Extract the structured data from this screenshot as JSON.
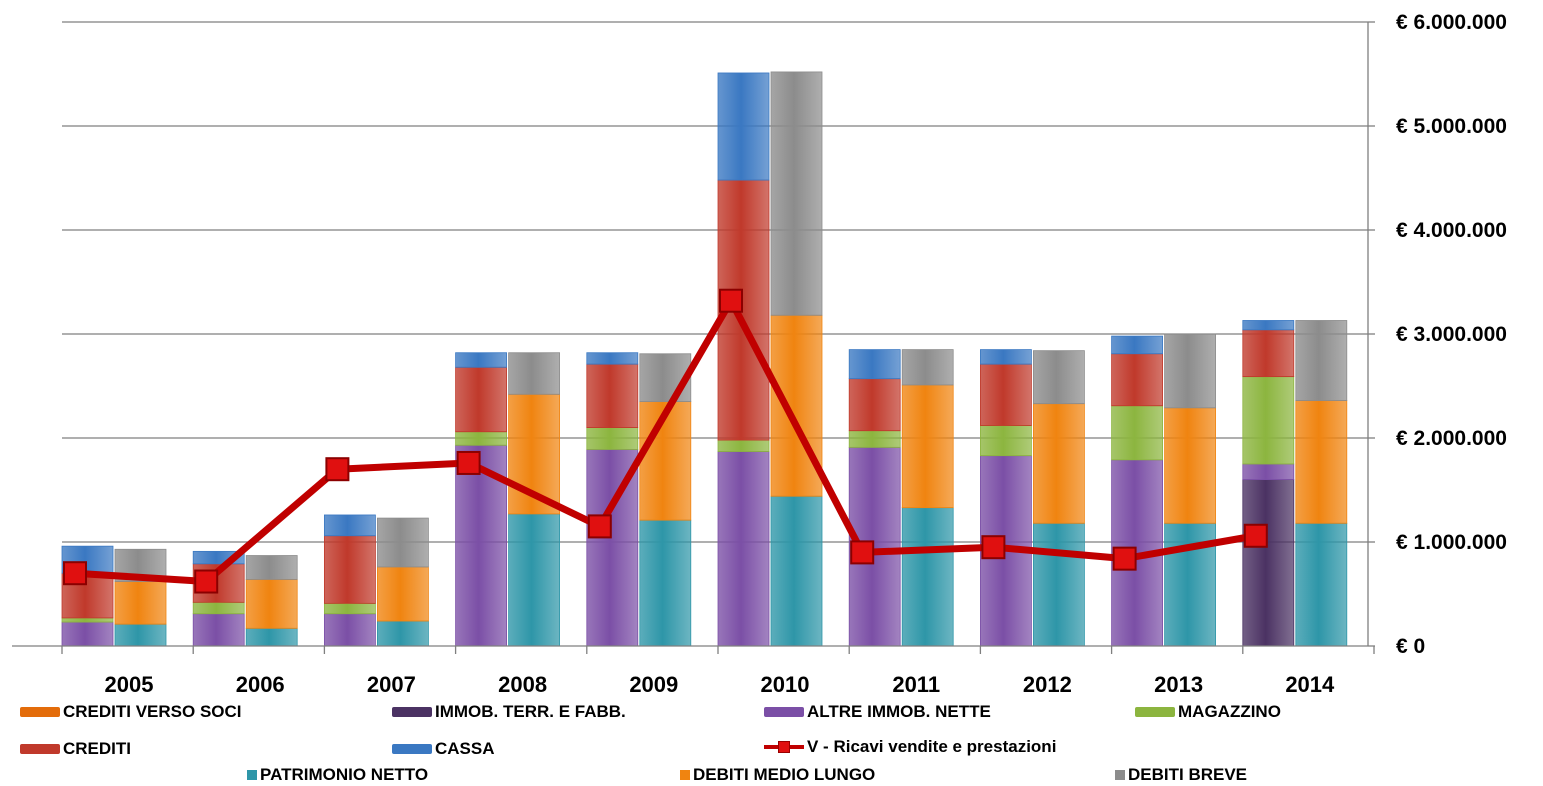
{
  "chart_data": {
    "type": "bar",
    "categories": [
      "2005",
      "2006",
      "2007",
      "2008",
      "2009",
      "2010",
      "2011",
      "2012",
      "2013",
      "2014"
    ],
    "ylim": [
      0,
      6000000
    ],
    "yticks": [
      "€ 0",
      "€ 1.000.000",
      "€ 2.000.000",
      "€ 3.000.000",
      "€ 4.000.000",
      "€ 5.000.000",
      "€ 6.000.000"
    ],
    "grid": true,
    "legend_position": "bottom",
    "y_axis_side": "right",
    "stacks": [
      {
        "name": "assets",
        "series": [
          {
            "name": "CREDITI VERSO SOCI",
            "color": "#e36c0a",
            "values": [
              0,
              0,
              0,
              0,
              0,
              0,
              0,
              0,
              0,
              0
            ]
          },
          {
            "name": "IMMOB. TERR. E FABB.",
            "color": "#4b3263",
            "values": [
              0,
              0,
              0,
              0,
              0,
              0,
              0,
              0,
              0,
              1600000
            ]
          },
          {
            "name": "ALTRE IMMOB. NETTE",
            "color": "#7b4fa6",
            "values": [
              230000,
              310000,
              310000,
              1930000,
              1890000,
              1870000,
              1910000,
              1830000,
              1790000,
              150000
            ]
          },
          {
            "name": "MAGAZZINO",
            "color": "#8cb53f",
            "values": [
              40000,
              110000,
              100000,
              130000,
              210000,
              110000,
              160000,
              290000,
              520000,
              840000
            ]
          },
          {
            "name": "CREDITI",
            "color": "#c0392b",
            "values": [
              430000,
              370000,
              650000,
              620000,
              610000,
              2500000,
              500000,
              590000,
              500000,
              450000
            ]
          },
          {
            "name": "CASSA",
            "color": "#3a78c2",
            "values": [
              260000,
              120000,
              200000,
              140000,
              110000,
              1030000,
              280000,
              140000,
              170000,
              90000
            ]
          }
        ]
      },
      {
        "name": "liabilities",
        "series": [
          {
            "name": "PATRIMONIO NETTO",
            "color": "#2e96a8",
            "values": [
              210000,
              170000,
              240000,
              1270000,
              1210000,
              1440000,
              1330000,
              1180000,
              1180000,
              1180000
            ]
          },
          {
            "name": "DEBITI MEDIO LUNGO",
            "color": "#f08410",
            "values": [
              410000,
              470000,
              520000,
              1150000,
              1140000,
              1740000,
              1180000,
              1150000,
              1110000,
              1180000
            ]
          },
          {
            "name": "DEBITI BREVE",
            "color": "#8c8c8c",
            "values": [
              310000,
              230000,
              470000,
              400000,
              460000,
              2340000,
              340000,
              510000,
              710000,
              770000
            ]
          }
        ]
      }
    ],
    "line": {
      "name": "V - Ricavi vendite e prestazioni",
      "color": "#c00000",
      "values": [
        700000,
        620000,
        1700000,
        1760000,
        1150000,
        3320000,
        900000,
        950000,
        840000,
        1060000
      ]
    },
    "legend_rows": [
      [
        "CREDITI VERSO SOCI",
        "IMMOB. TERR. E FABB.",
        "ALTRE IMMOB. NETTE",
        "MAGAZZINO"
      ],
      [
        "CREDITI",
        "CASSA",
        "V - Ricavi vendite e prestazioni"
      ],
      [
        "PATRIMONIO NETTO",
        "DEBITI MEDIO LUNGO",
        "DEBITI BREVE"
      ]
    ]
  }
}
